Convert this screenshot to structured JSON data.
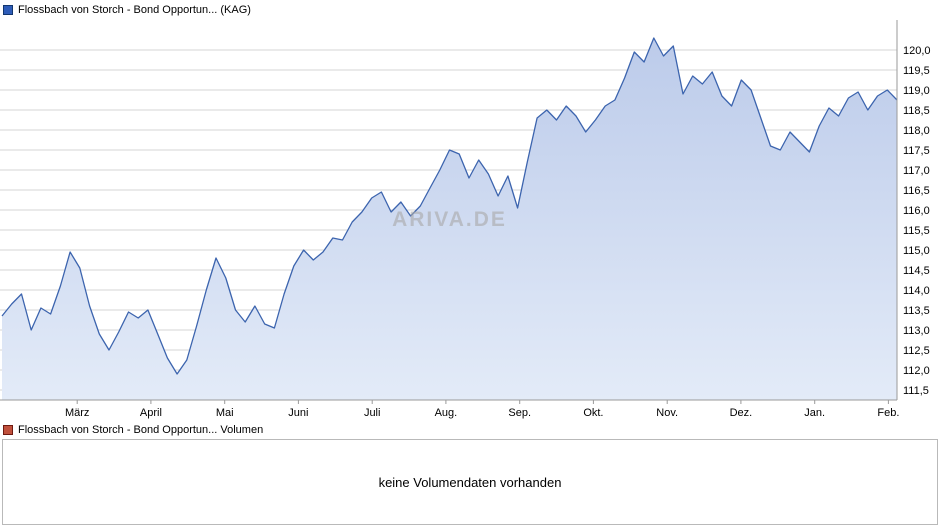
{
  "legend_top": {
    "label": "Flossbach von Storch - Bond Opportun... (KAG)",
    "color": "#2e5cb8",
    "border": "#12366e"
  },
  "legend_volume": {
    "label": "Flossbach von Storch - Bond Opportun... Volumen",
    "color": "#c0503c",
    "border": "#6e1a10"
  },
  "watermark": "ARIVA.DE",
  "volume": {
    "empty_text": "keine Volumendaten vorhanden"
  },
  "chart_data": {
    "type": "area",
    "series_name": "Flossbach von Storch - Bond Opportun... (KAG)",
    "xlabel": "",
    "ylabel": "",
    "grid": true,
    "legend_position": "top-left",
    "x_ticks": [
      "März",
      "April",
      "Mai",
      "Juni",
      "Juli",
      "Aug.",
      "Sep.",
      "Okt.",
      "Nov.",
      "Dez.",
      "Jan.",
      "Feb."
    ],
    "x_tick_pos": [
      0.084,
      0.1664,
      0.2488,
      0.3312,
      0.4136,
      0.496,
      0.5784,
      0.6608,
      0.7432,
      0.8256,
      0.908,
      0.9904
    ],
    "y_ticks": [
      "120,0",
      "119,5",
      "119,0",
      "118,5",
      "118,0",
      "117,5",
      "117,0",
      "116,5",
      "116,0",
      "115,5",
      "115,0",
      "114,5",
      "114,0",
      "113,5",
      "113,0",
      "112,5",
      "112,0",
      "111,5"
    ],
    "ylim": [
      111.25,
      120.45
    ],
    "line_color": "#3c64ae",
    "fill_top": "#bccbea",
    "fill_bottom": "#e3ebf8",
    "values": [
      113.35,
      113.65,
      113.9,
      113.0,
      113.55,
      113.4,
      114.1,
      114.95,
      114.55,
      113.6,
      112.9,
      112.5,
      112.95,
      113.45,
      113.3,
      113.5,
      112.9,
      112.3,
      111.9,
      112.25,
      113.1,
      114.0,
      114.8,
      114.3,
      113.5,
      113.2,
      113.6,
      113.15,
      113.05,
      113.9,
      114.6,
      115.0,
      114.75,
      114.95,
      115.3,
      115.25,
      115.7,
      115.95,
      116.3,
      116.45,
      115.95,
      116.2,
      115.85,
      116.1,
      116.55,
      117.0,
      117.5,
      117.4,
      116.8,
      117.25,
      116.9,
      116.35,
      116.85,
      116.05,
      117.2,
      118.3,
      118.5,
      118.25,
      118.6,
      118.35,
      117.95,
      118.25,
      118.6,
      118.75,
      119.3,
      119.95,
      119.7,
      120.3,
      119.85,
      120.1,
      118.9,
      119.35,
      119.15,
      119.45,
      118.85,
      118.6,
      119.25,
      119.0,
      118.3,
      117.6,
      117.5,
      117.95,
      117.7,
      117.45,
      118.1,
      118.55,
      118.35,
      118.8,
      118.95,
      118.5,
      118.85,
      119.0,
      118.75
    ]
  }
}
